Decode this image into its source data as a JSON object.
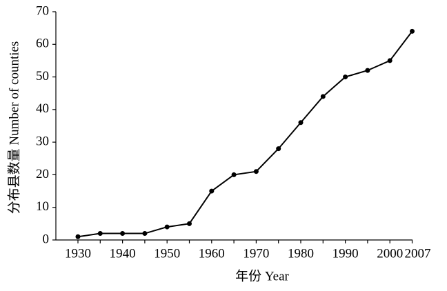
{
  "chart_data": {
    "type": "line",
    "x_label": "年份 Year",
    "y_label": "分布县数量 Number of counties",
    "categories": [
      "1930",
      null,
      "1940",
      null,
      "1950",
      null,
      "1960",
      null,
      "1970",
      null,
      "1980",
      null,
      "1990",
      null,
      "2000",
      "2007"
    ],
    "series": [
      {
        "name": null,
        "color": "#000000",
        "values": [
          1,
          2,
          2,
          2,
          4,
          5,
          15,
          20,
          21,
          28,
          36,
          44,
          50,
          52,
          55,
          64
        ]
      }
    ],
    "ylim": [
      0,
      70
    ],
    "yticks": [
      0,
      10,
      20,
      30,
      40,
      50,
      60,
      70
    ],
    "grid": false
  }
}
